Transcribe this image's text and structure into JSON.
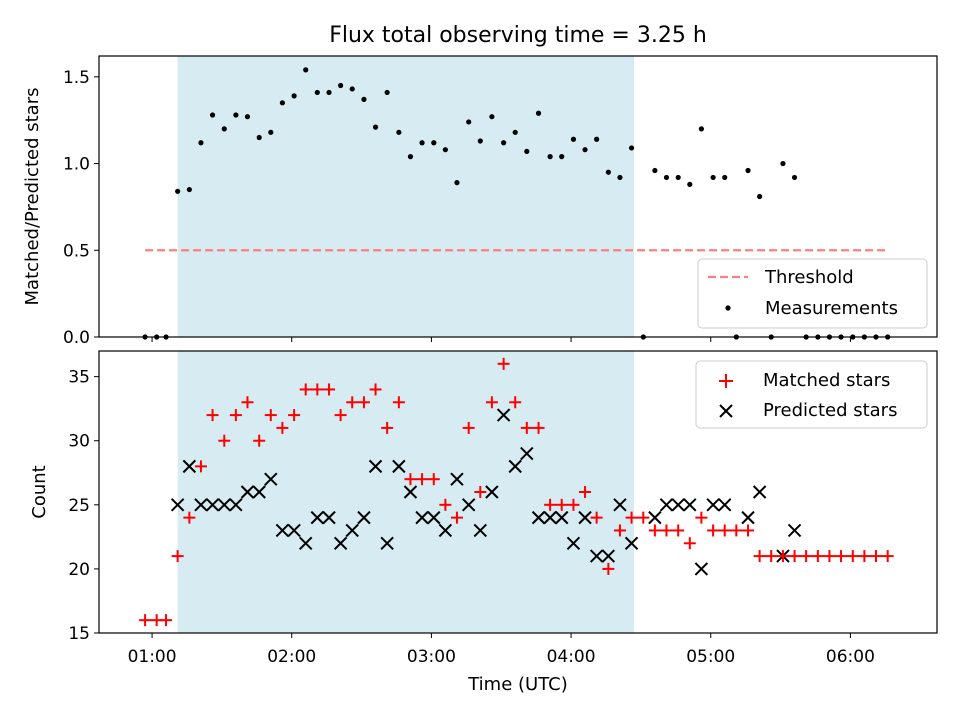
{
  "chart_data": [
    {
      "type": "scatter",
      "title": "Flux total observing time = 3.25 h",
      "ylabel": "Matched/Predicted stars",
      "xlabel": "",
      "x_unit": "hours UTC",
      "xlim": [
        0.62,
        6.62
      ],
      "ylim": [
        0.0,
        1.62
      ],
      "yticks": [
        0.0,
        0.5,
        1.0,
        1.5
      ],
      "ytick_labels": [
        "0.0",
        "0.5",
        "1.0",
        "1.5"
      ],
      "shaded_span": [
        1.183,
        4.45
      ],
      "legend_position": "lower right",
      "threshold": {
        "name": "Threshold",
        "value": 0.5,
        "x_range": [
          0.95,
          6.25
        ],
        "color": "#ff7f7f"
      },
      "series": [
        {
          "name": "Measurements",
          "color": "#000000",
          "marker": "dot",
          "x": [
            0.95,
            1.033,
            1.1,
            1.183,
            1.267,
            1.35,
            1.433,
            1.517,
            1.6,
            1.683,
            1.767,
            1.85,
            1.933,
            2.017,
            2.1,
            2.183,
            2.267,
            2.35,
            2.433,
            2.517,
            2.6,
            2.683,
            2.767,
            2.85,
            2.933,
            3.017,
            3.1,
            3.183,
            3.267,
            3.35,
            3.433,
            3.517,
            3.6,
            3.683,
            3.767,
            3.85,
            3.933,
            4.017,
            4.1,
            4.183,
            4.267,
            4.35,
            4.433,
            4.517,
            4.6,
            4.683,
            4.767,
            4.85,
            4.933,
            5.017,
            5.1,
            5.183,
            5.267,
            5.35,
            5.433,
            5.517,
            5.6,
            5.683,
            5.767,
            5.85,
            5.933,
            6.017,
            6.1,
            6.183,
            6.267
          ],
          "y": [
            0,
            0,
            0,
            0.84,
            0.85,
            1.12,
            1.28,
            1.2,
            1.28,
            1.27,
            1.15,
            1.18,
            1.35,
            1.39,
            1.54,
            1.41,
            1.41,
            1.45,
            1.43,
            1.37,
            1.21,
            1.41,
            1.18,
            1.04,
            1.12,
            1.12,
            1.08,
            0.89,
            1.24,
            1.13,
            1.27,
            1.12,
            1.18,
            1.07,
            1.29,
            1.04,
            1.04,
            1.14,
            1.08,
            1.14,
            0.95,
            0.92,
            1.09,
            0,
            0.96,
            0.92,
            0.92,
            0.88,
            1.2,
            0.92,
            0.92,
            0,
            0.96,
            0.81,
            0,
            1.0,
            0.92,
            0,
            0,
            0,
            0,
            0,
            0,
            0,
            0
          ]
        }
      ]
    },
    {
      "type": "scatter",
      "title": "",
      "xlabel": "Time (UTC)",
      "ylabel": "Count",
      "x_unit": "hours UTC",
      "xlim": [
        0.62,
        6.62
      ],
      "ylim": [
        15,
        37
      ],
      "yticks": [
        15,
        20,
        25,
        30,
        35
      ],
      "ytick_labels": [
        "15",
        "20",
        "25",
        "30",
        "35"
      ],
      "xticks": [
        1,
        2,
        3,
        4,
        5,
        6
      ],
      "xtick_labels": [
        "01:00",
        "02:00",
        "03:00",
        "04:00",
        "05:00",
        "06:00"
      ],
      "shaded_span": [
        1.183,
        4.45
      ],
      "legend_position": "upper right",
      "series": [
        {
          "name": "Matched stars",
          "color": "#ff0000",
          "marker": "plus",
          "x": [
            0.95,
            1.033,
            1.1,
            1.183,
            1.267,
            1.35,
            1.433,
            1.517,
            1.6,
            1.683,
            1.767,
            1.85,
            1.933,
            2.017,
            2.1,
            2.183,
            2.267,
            2.35,
            2.433,
            2.517,
            2.6,
            2.683,
            2.767,
            2.85,
            2.933,
            3.017,
            3.1,
            3.183,
            3.267,
            3.35,
            3.433,
            3.517,
            3.6,
            3.683,
            3.767,
            3.85,
            3.933,
            4.017,
            4.1,
            4.183,
            4.267,
            4.35,
            4.433,
            4.517,
            4.6,
            4.683,
            4.767,
            4.85,
            4.933,
            5.017,
            5.1,
            5.183,
            5.267,
            5.35,
            5.433,
            5.517,
            5.6,
            5.683,
            5.767,
            5.85,
            5.933,
            6.017,
            6.1,
            6.183,
            6.267
          ],
          "y": [
            16,
            16,
            16,
            21,
            24,
            28,
            32,
            30,
            32,
            33,
            30,
            32,
            31,
            32,
            34,
            34,
            34,
            32,
            33,
            33,
            34,
            31,
            33,
            27,
            27,
            27,
            25,
            24,
            31,
            26,
            33,
            36,
            33,
            31,
            31,
            25,
            25,
            25,
            26,
            24,
            20,
            23,
            24,
            24,
            23,
            23,
            23,
            22,
            24,
            23,
            23,
            23,
            23,
            21,
            21,
            21,
            21,
            21,
            21,
            21,
            21,
            21,
            21,
            21,
            21
          ]
        },
        {
          "name": "Predicted stars",
          "color": "#000000",
          "marker": "x",
          "x": [
            1.183,
            1.267,
            1.35,
            1.433,
            1.517,
            1.6,
            1.683,
            1.767,
            1.85,
            1.933,
            2.017,
            2.1,
            2.183,
            2.267,
            2.35,
            2.433,
            2.517,
            2.6,
            2.683,
            2.767,
            2.85,
            2.933,
            3.017,
            3.1,
            3.183,
            3.267,
            3.35,
            3.433,
            3.517,
            3.6,
            3.683,
            3.767,
            3.85,
            3.933,
            4.017,
            4.1,
            4.183,
            4.267,
            4.35,
            4.433,
            4.6,
            4.683,
            4.767,
            4.85,
            4.933,
            5.017,
            5.1,
            5.267,
            5.35,
            5.517,
            5.6
          ],
          "y": [
            25,
            28,
            25,
            25,
            25,
            25,
            26,
            26,
            27,
            23,
            23,
            22,
            24,
            24,
            22,
            23,
            24,
            28,
            22,
            28,
            26,
            24,
            24,
            23,
            27,
            25,
            23,
            26,
            32,
            28,
            29,
            24,
            24,
            24,
            22,
            24,
            21,
            21,
            25,
            22,
            24,
            25,
            25,
            25,
            20,
            25,
            25,
            24,
            26,
            21,
            23
          ]
        }
      ]
    }
  ]
}
